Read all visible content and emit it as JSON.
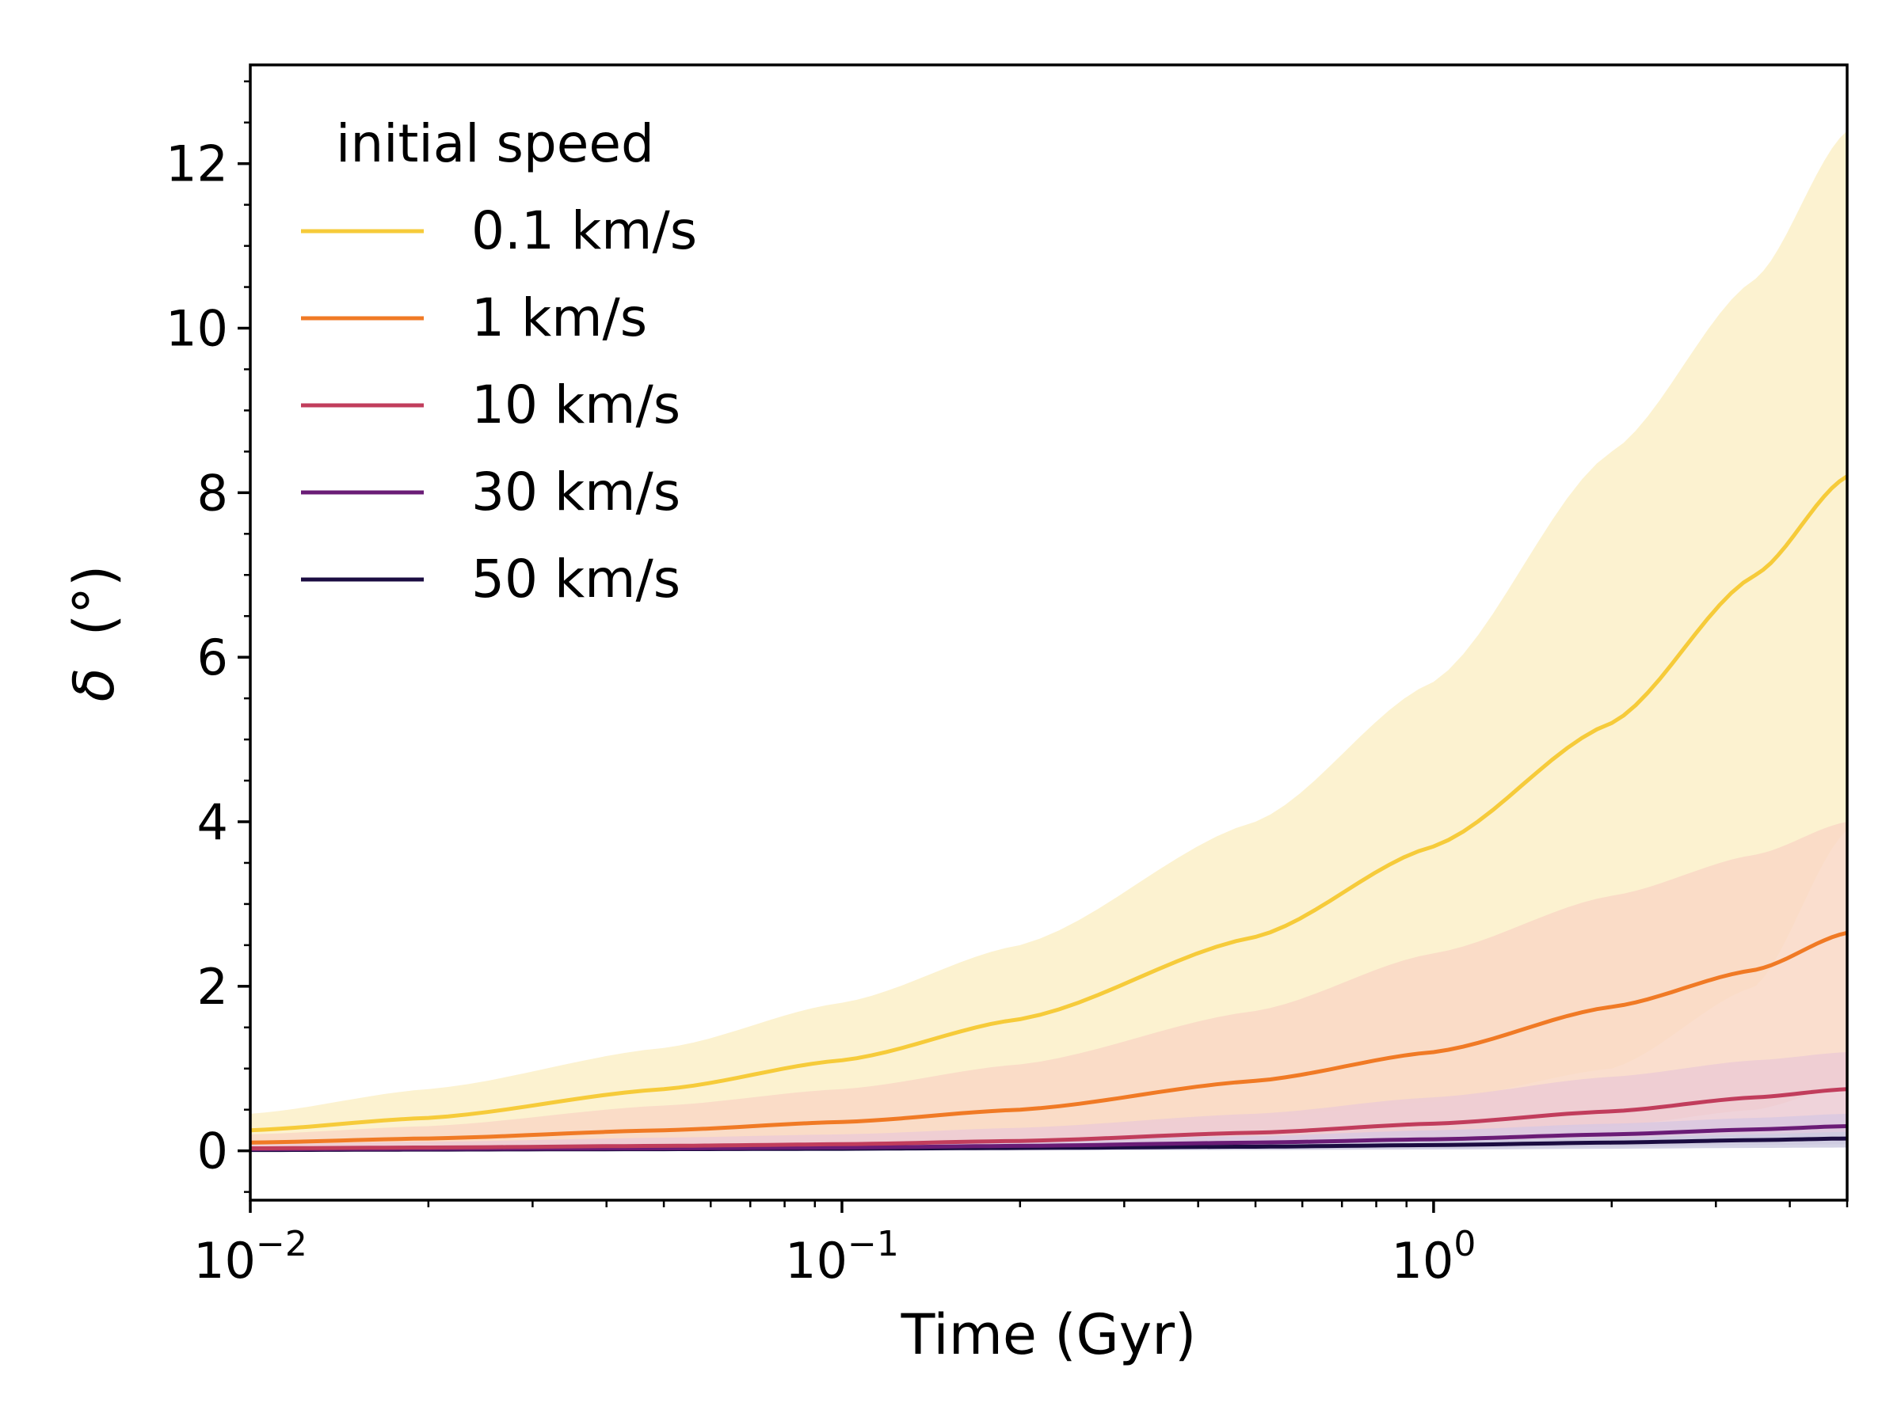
{
  "chart_data": {
    "type": "line",
    "title": "",
    "xlabel": "Time (Gyr)",
    "ylabel_symbol": "δ",
    "ylabel_unit": "(°)",
    "xscale": "log",
    "xlim": [
      0.01,
      5.0
    ],
    "ylim": [
      -0.6,
      13.2
    ],
    "grid": false,
    "x_ticks": [
      {
        "value": 0.01,
        "base": "10",
        "exp": "−2"
      },
      {
        "value": 0.1,
        "base": "10",
        "exp": "−1"
      },
      {
        "value": 1,
        "base": "10",
        "exp": "0"
      }
    ],
    "y_ticks": [
      {
        "value": 0,
        "label": "0"
      },
      {
        "value": 2,
        "label": "2"
      },
      {
        "value": 4,
        "label": "4"
      },
      {
        "value": 6,
        "label": "6"
      },
      {
        "value": 8,
        "label": "8"
      },
      {
        "value": 10,
        "label": "10"
      },
      {
        "value": 12,
        "label": "12"
      }
    ],
    "legend": {
      "title": "initial speed",
      "placement": "top-left"
    },
    "series": [
      {
        "name": "0.1 km/s",
        "color": "#f6cb3a",
        "band_color": "#fcf0c8",
        "x": [
          0.01,
          0.02,
          0.05,
          0.1,
          0.2,
          0.5,
          1.0,
          2.0,
          3.5,
          5.0
        ],
        "median": [
          0.25,
          0.4,
          0.75,
          1.1,
          1.6,
          2.6,
          3.7,
          5.2,
          7.0,
          8.2
        ],
        "lower": [
          0.05,
          0.08,
          0.15,
          0.2,
          0.28,
          0.4,
          0.6,
          1.0,
          2.0,
          3.9
        ],
        "upper": [
          0.45,
          0.75,
          1.25,
          1.8,
          2.5,
          4.0,
          5.7,
          8.5,
          10.6,
          12.4
        ]
      },
      {
        "name": "1 km/s",
        "color": "#f07a25",
        "band_color": "#f9d8c6",
        "x": [
          0.01,
          0.02,
          0.05,
          0.1,
          0.2,
          0.5,
          1.0,
          2.0,
          3.5,
          5.0
        ],
        "median": [
          0.1,
          0.15,
          0.25,
          0.35,
          0.5,
          0.85,
          1.2,
          1.75,
          2.2,
          2.65
        ],
        "lower": [
          0.02,
          0.03,
          0.05,
          0.07,
          0.09,
          0.14,
          0.2,
          0.3,
          0.5,
          0.8
        ],
        "upper": [
          0.2,
          0.3,
          0.55,
          0.75,
          1.05,
          1.7,
          2.4,
          3.1,
          3.6,
          4.0
        ]
      },
      {
        "name": "10 km/s",
        "color": "#c13d5c",
        "band_color": "#eccbd3",
        "x": [
          0.01,
          0.02,
          0.05,
          0.1,
          0.2,
          0.5,
          1.0,
          2.0,
          3.5,
          5.0
        ],
        "median": [
          0.03,
          0.04,
          0.06,
          0.08,
          0.12,
          0.22,
          0.33,
          0.48,
          0.65,
          0.75
        ],
        "lower": [
          0.0,
          0.0,
          0.01,
          0.01,
          0.02,
          0.04,
          0.06,
          0.09,
          0.12,
          0.15
        ],
        "upper": [
          0.08,
          0.11,
          0.16,
          0.2,
          0.28,
          0.45,
          0.65,
          0.9,
          1.1,
          1.2
        ]
      },
      {
        "name": "30 km/s",
        "color": "#6a1c76",
        "band_color": "#d9c8e0",
        "x": [
          0.01,
          0.02,
          0.05,
          0.1,
          0.2,
          0.5,
          1.0,
          2.0,
          3.5,
          5.0
        ],
        "median": [
          0.02,
          0.025,
          0.03,
          0.04,
          0.06,
          0.1,
          0.14,
          0.2,
          0.26,
          0.3
        ],
        "lower": [
          0.0,
          0.0,
          0.0,
          0.005,
          0.01,
          0.02,
          0.03,
          0.05,
          0.07,
          0.08
        ],
        "upper": [
          0.04,
          0.05,
          0.07,
          0.09,
          0.12,
          0.18,
          0.25,
          0.33,
          0.4,
          0.45
        ]
      },
      {
        "name": "50 km/s",
        "color": "#1b0c41",
        "band_color": "#cdcbe0",
        "x": [
          0.01,
          0.02,
          0.05,
          0.1,
          0.2,
          0.5,
          1.0,
          2.0,
          3.5,
          5.0
        ],
        "median": [
          0.01,
          0.015,
          0.02,
          0.025,
          0.035,
          0.05,
          0.07,
          0.1,
          0.13,
          0.15
        ],
        "lower": [
          0.0,
          0.0,
          0.0,
          0.0,
          0.005,
          0.01,
          0.015,
          0.025,
          0.035,
          0.04
        ],
        "upper": [
          0.025,
          0.03,
          0.04,
          0.05,
          0.065,
          0.09,
          0.12,
          0.16,
          0.2,
          0.23
        ]
      }
    ]
  }
}
